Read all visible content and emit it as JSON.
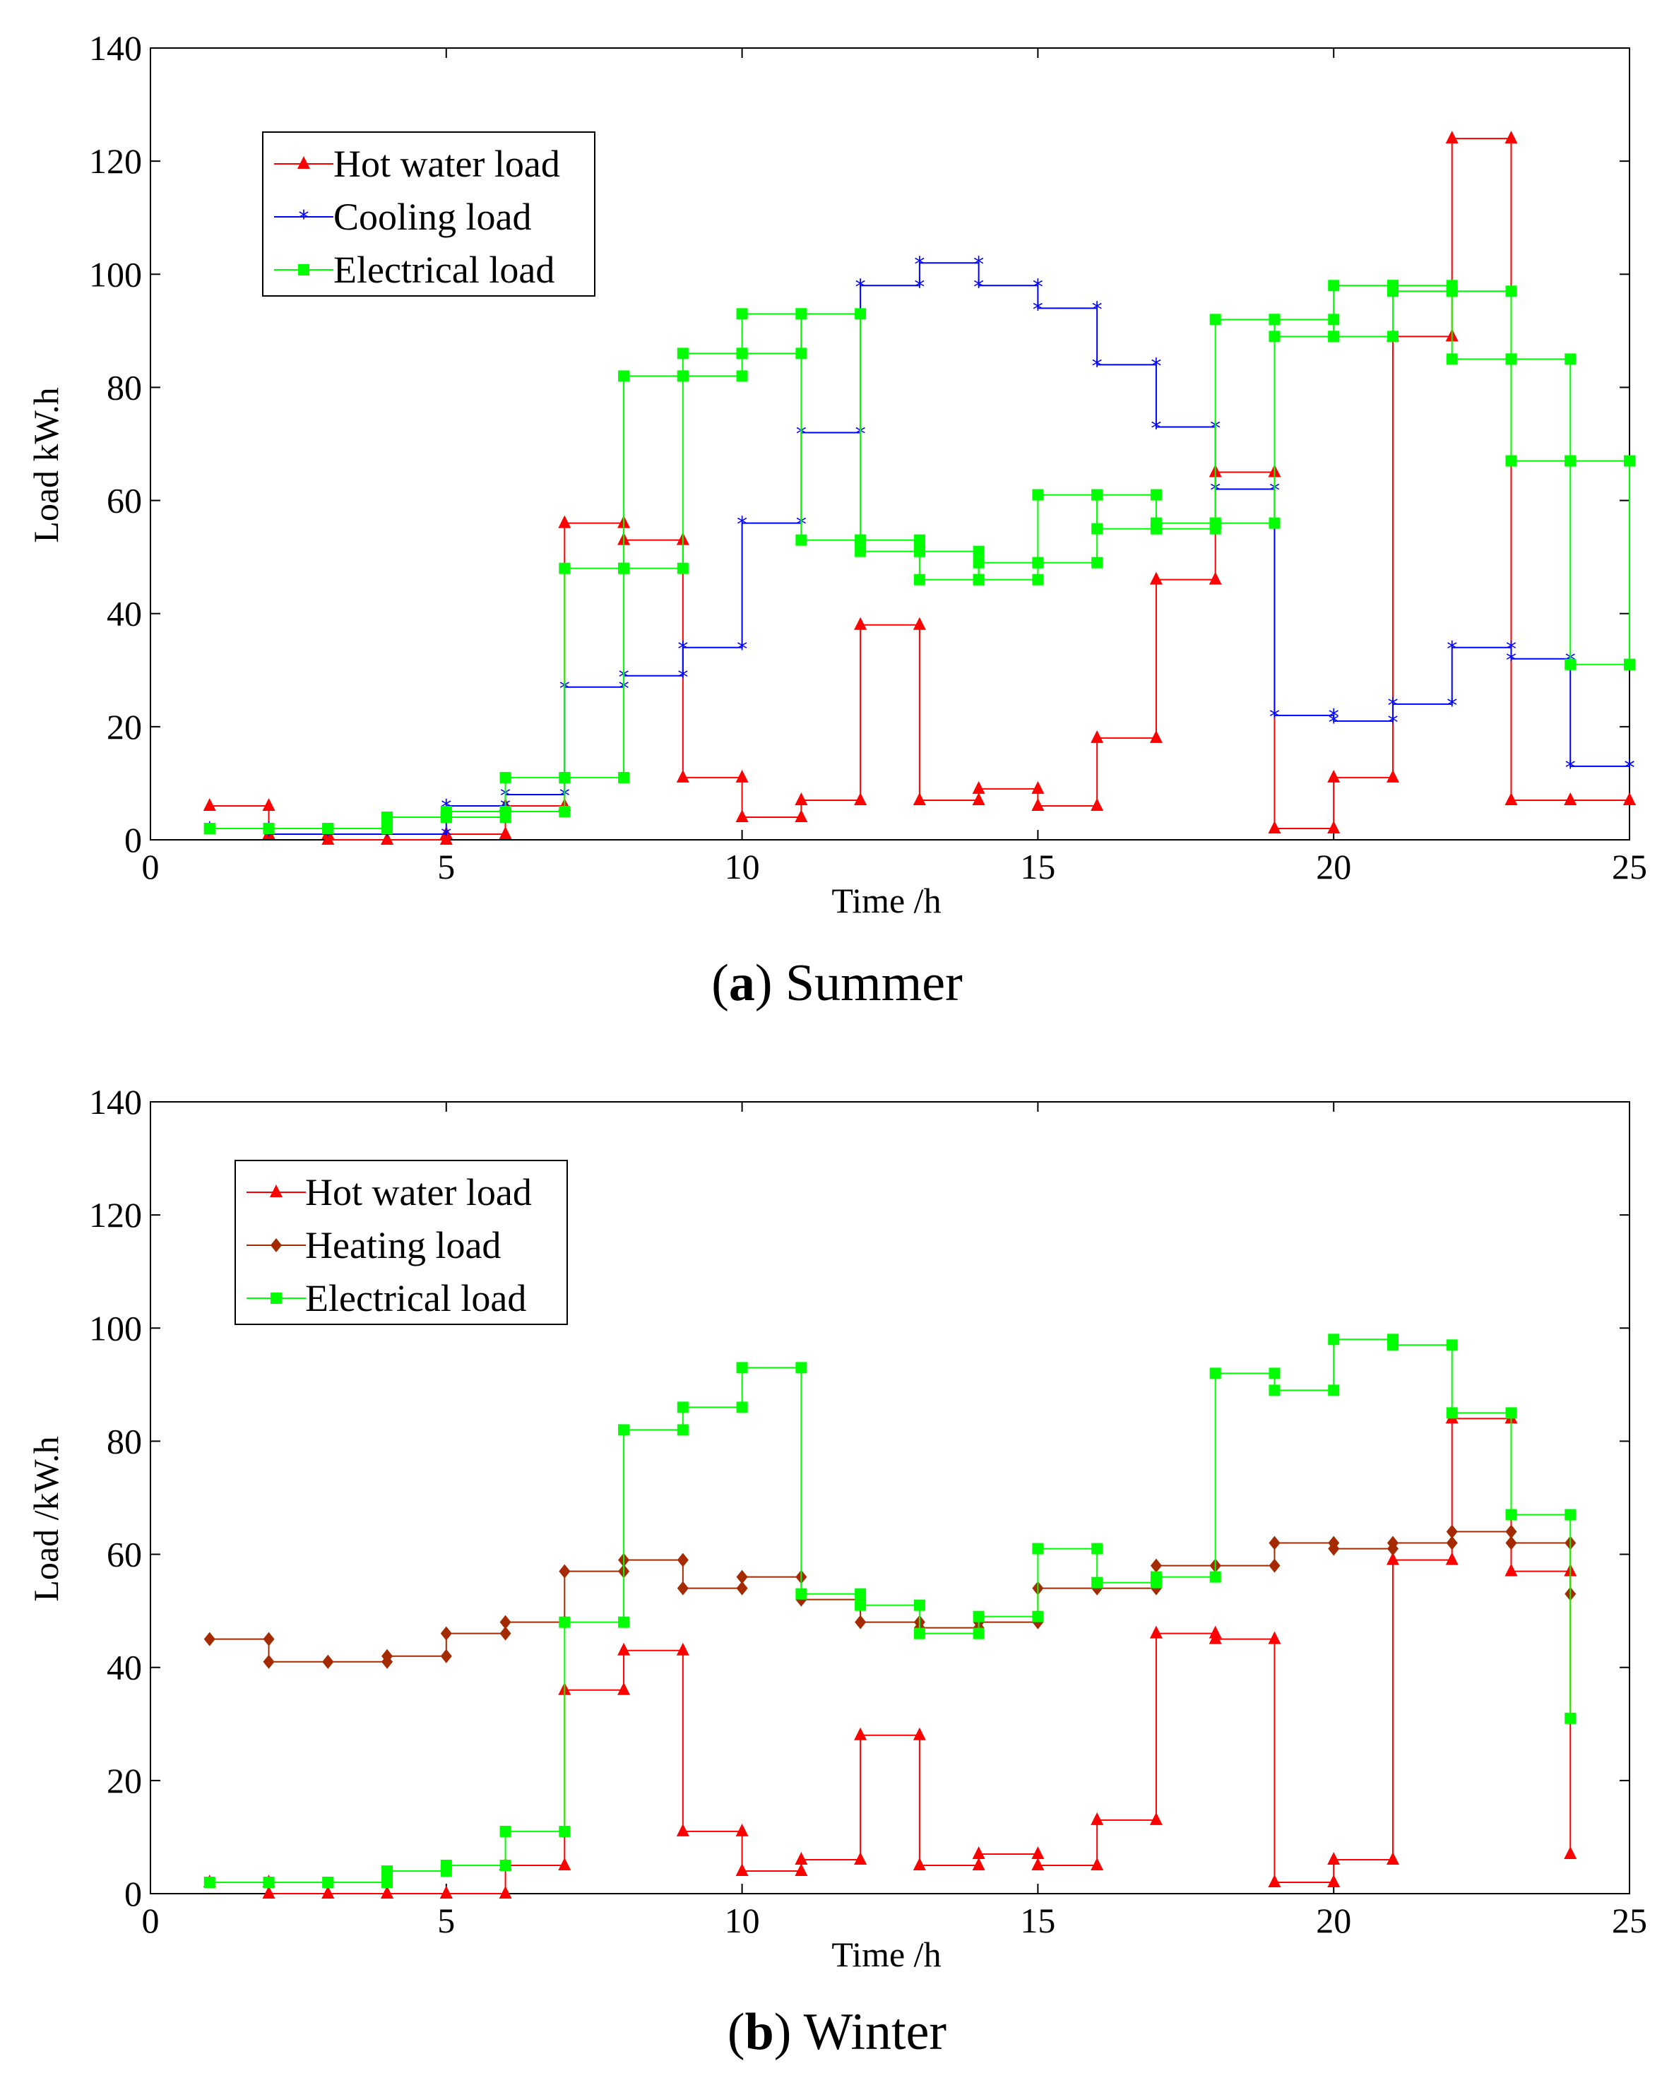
{
  "chart_data": [
    {
      "type": "line",
      "step": "post",
      "caption": {
        "open": "(",
        "letter": "a",
        "close": ")",
        "text": "Summer"
      },
      "xlabel": "Time /h",
      "ylabel": "Load kW.h",
      "xlim": [
        0,
        25
      ],
      "ylim": [
        0,
        140
      ],
      "xticks": [
        0,
        5,
        10,
        15,
        20,
        25
      ],
      "yticks": [
        0,
        20,
        40,
        60,
        80,
        100,
        120,
        140
      ],
      "grid": false,
      "legend_position": "top-left",
      "series": [
        {
          "name": "Hot water load",
          "color": "#ff0000",
          "marker": "triangle",
          "x": [
            1,
            2,
            3,
            4,
            5,
            6,
            7,
            8,
            9,
            10,
            11,
            12,
            13,
            14,
            15,
            16,
            17,
            18,
            19,
            20,
            21,
            22,
            23,
            24,
            25
          ],
          "y": [
            6,
            1,
            0,
            0,
            1,
            6,
            56,
            53,
            11,
            4,
            7,
            38,
            7,
            9,
            6,
            18,
            46,
            65,
            2,
            11,
            89,
            124,
            7,
            7,
            7
          ]
        },
        {
          "name": "Cooling load",
          "color": "#0000ff",
          "marker": "star",
          "x": [
            1,
            2,
            3,
            4,
            5,
            6,
            7,
            8,
            9,
            10,
            11,
            12,
            13,
            14,
            15,
            16,
            17,
            18,
            19,
            20,
            21,
            22,
            23,
            24,
            25
          ],
          "y": [
            2,
            1,
            1,
            1,
            6,
            8,
            27,
            29,
            34,
            56,
            72,
            98,
            102,
            98,
            94,
            84,
            73,
            62,
            22,
            21,
            24,
            34,
            32,
            13,
            13
          ]
        },
        {
          "name": "Electrical load",
          "color": "#00ff00",
          "marker": "square",
          "x": [
            1,
            2,
            3,
            4,
            5,
            6,
            7,
            8,
            9,
            10,
            11,
            12,
            13,
            14,
            15,
            16,
            17,
            18,
            19,
            20,
            21,
            22,
            23,
            24,
            25
          ],
          "y": [
            2,
            2,
            2,
            4,
            5,
            11,
            48,
            82,
            86,
            93,
            53,
            51,
            46,
            49,
            61,
            55,
            56,
            92,
            89,
            98,
            97,
            85,
            67,
            31,
            31
          ]
        },
        {
          "name": "",
          "color": "#00ff00",
          "marker": "square",
          "x": [
            1,
            2,
            3,
            4,
            5,
            6,
            7,
            8,
            9,
            10,
            11,
            12,
            13,
            14,
            15,
            16,
            17,
            18,
            19,
            20,
            21,
            22,
            23,
            24,
            25
          ],
          "y": [
            2,
            2,
            2,
            4,
            4,
            5,
            11,
            48,
            82,
            86,
            93,
            53,
            51,
            46,
            49,
            61,
            55,
            56,
            92,
            89,
            98,
            97,
            85,
            67,
            31
          ]
        }
      ]
    },
    {
      "type": "line",
      "step": "post",
      "caption": {
        "open": "(",
        "letter": "b",
        "close": ")",
        "text": "Winter"
      },
      "xlabel": "Time /h",
      "ylabel": "Load /kW.h",
      "xlim": [
        0,
        25
      ],
      "ylim": [
        0,
        140
      ],
      "xticks": [
        0,
        5,
        10,
        15,
        20,
        25
      ],
      "yticks": [
        0,
        20,
        40,
        60,
        80,
        100,
        120,
        140
      ],
      "grid": false,
      "legend_position": "top-left",
      "series": [
        {
          "name": "Hot water load",
          "color": "#ff0000",
          "marker": "triangle",
          "x": [
            1,
            2,
            3,
            4,
            5,
            6,
            7,
            8,
            9,
            10,
            11,
            12,
            13,
            14,
            15,
            16,
            17,
            18,
            19,
            20,
            21,
            22,
            23,
            24
          ],
          "y": [
            2,
            0,
            0,
            0,
            0,
            5,
            36,
            43,
            11,
            4,
            6,
            28,
            5,
            7,
            5,
            13,
            46,
            45,
            2,
            6,
            59,
            84,
            57,
            7
          ]
        },
        {
          "name": "Heating load",
          "color": "#a52a00",
          "marker": "diamond",
          "x": [
            1,
            2,
            3,
            4,
            5,
            6,
            7,
            8,
            9,
            10,
            11,
            12,
            13,
            14,
            15,
            16,
            17,
            18,
            19,
            20,
            21,
            22,
            23,
            24
          ],
          "y": [
            45,
            41,
            41,
            42,
            46,
            48,
            57,
            59,
            54,
            56,
            52,
            48,
            47,
            48,
            54,
            54,
            58,
            58,
            62,
            61,
            62,
            64,
            62,
            53
          ]
        },
        {
          "name": "Electrical load",
          "color": "#00ff00",
          "marker": "square",
          "x": [
            1,
            2,
            3,
            4,
            5,
            6,
            7,
            8,
            9,
            10,
            11,
            12,
            13,
            14,
            15,
            16,
            17,
            18,
            19,
            20,
            21,
            22,
            23,
            24
          ],
          "y": [
            2,
            2,
            2,
            4,
            5,
            11,
            48,
            82,
            86,
            93,
            53,
            51,
            46,
            49,
            61,
            55,
            56,
            92,
            89,
            98,
            97,
            85,
            67,
            31
          ]
        }
      ]
    }
  ]
}
